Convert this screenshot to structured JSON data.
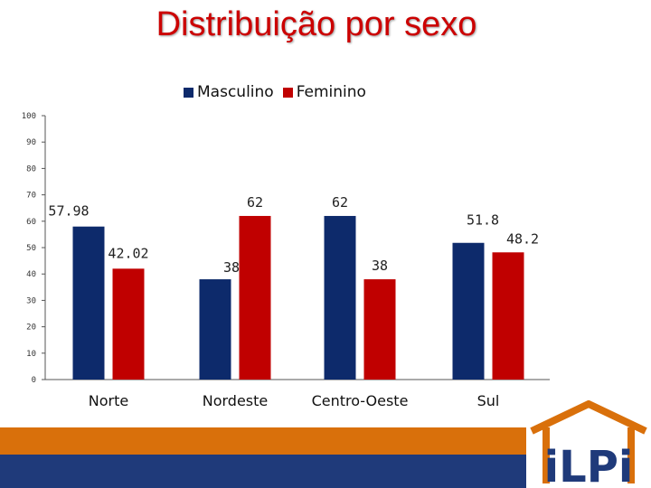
{
  "chart_data": {
    "type": "bar",
    "title": "Distribuição por sexo",
    "categories": [
      "Norte",
      "Nordeste",
      "Centro-Oeste",
      "Sul"
    ],
    "series": [
      {
        "name": "Masculino",
        "color": "#0d2a6b",
        "values": [
          57.98,
          38,
          62,
          51.8
        ],
        "labels": [
          "57.98",
          "38",
          "62",
          "51.8"
        ]
      },
      {
        "name": "Feminino",
        "color": "#c00000",
        "values": [
          42.02,
          62,
          38,
          48.2
        ],
        "labels": [
          "42.02",
          "62",
          "38",
          "48.2"
        ]
      }
    ],
    "ylim": [
      0,
      100
    ],
    "yticks": [
      0,
      10,
      20,
      30,
      40,
      50,
      60,
      70,
      80,
      90,
      100
    ],
    "xlabel": "",
    "ylabel": "",
    "legend": "top-center"
  },
  "logo": {
    "text": "iLPi"
  }
}
